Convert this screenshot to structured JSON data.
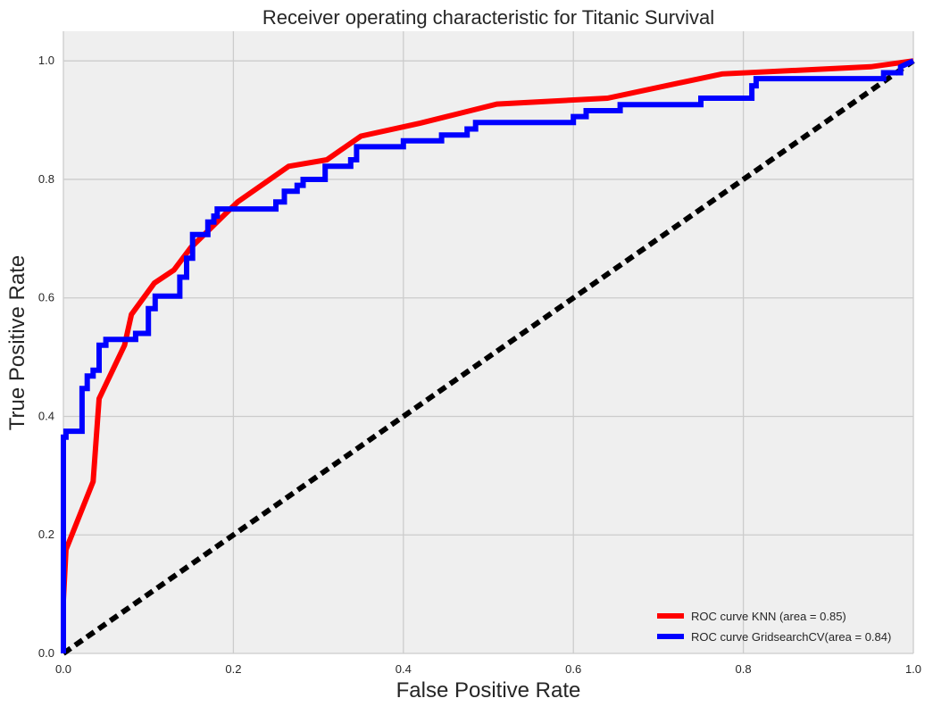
{
  "chart_data": {
    "type": "line",
    "title": "Receiver operating characteristic for Titanic Survival",
    "xlabel": "False Positive Rate",
    "ylabel": "True Positive Rate",
    "xlim": [
      0.0,
      1.0
    ],
    "ylim": [
      0.0,
      1.05
    ],
    "xticks": [
      0.0,
      0.2,
      0.4,
      0.6,
      0.8,
      1.0
    ],
    "xtick_labels": [
      "0.0",
      "0.2",
      "0.4",
      "0.6",
      "0.8",
      "1.0"
    ],
    "yticks": [
      0.0,
      0.2,
      0.4,
      0.6,
      0.8,
      1.0
    ],
    "ytick_labels": [
      "0.0",
      "0.2",
      "0.4",
      "0.6",
      "0.8",
      "1.0"
    ],
    "grid": true,
    "background_color": "#efefef",
    "grid_color": "#cccccc",
    "legend_position": "lower-right",
    "series": [
      {
        "name": "ROC curve KNN (area = 0.85)",
        "color": "#ff0000",
        "style": "solid",
        "x": [
          0.0,
          0.003,
          0.035,
          0.042,
          0.052,
          0.072,
          0.08,
          0.107,
          0.13,
          0.15,
          0.205,
          0.265,
          0.31,
          0.35,
          0.42,
          0.51,
          0.64,
          0.775,
          0.95,
          1.0
        ],
        "y": [
          0.09,
          0.175,
          0.29,
          0.43,
          0.46,
          0.52,
          0.572,
          0.625,
          0.647,
          0.685,
          0.762,
          0.822,
          0.833,
          0.873,
          0.895,
          0.927,
          0.937,
          0.978,
          0.99,
          1.0
        ]
      },
      {
        "name": "ROC curve GridsearchCV(area = 0.84)",
        "color": "#0000ff",
        "style": "solid",
        "x": [
          0.0,
          0.0,
          0.003,
          0.003,
          0.022,
          0.022,
          0.028,
          0.028,
          0.035,
          0.035,
          0.042,
          0.042,
          0.05,
          0.05,
          0.085,
          0.085,
          0.1,
          0.1,
          0.108,
          0.108,
          0.137,
          0.137,
          0.145,
          0.145,
          0.152,
          0.152,
          0.17,
          0.17,
          0.177,
          0.177,
          0.181,
          0.181,
          0.25,
          0.25,
          0.26,
          0.26,
          0.275,
          0.275,
          0.282,
          0.282,
          0.308,
          0.308,
          0.338,
          0.338,
          0.345,
          0.345,
          0.4,
          0.4,
          0.445,
          0.445,
          0.475,
          0.475,
          0.485,
          0.485,
          0.6,
          0.6,
          0.615,
          0.615,
          0.655,
          0.655,
          0.75,
          0.75,
          0.81,
          0.81,
          0.815,
          0.815,
          0.965,
          0.965,
          0.985,
          0.985,
          1.0
        ],
        "y": [
          0.0,
          0.365,
          0.365,
          0.375,
          0.375,
          0.447,
          0.447,
          0.468,
          0.468,
          0.478,
          0.478,
          0.52,
          0.52,
          0.53,
          0.53,
          0.54,
          0.54,
          0.582,
          0.582,
          0.603,
          0.603,
          0.635,
          0.635,
          0.667,
          0.667,
          0.707,
          0.707,
          0.728,
          0.728,
          0.738,
          0.738,
          0.75,
          0.75,
          0.762,
          0.762,
          0.78,
          0.78,
          0.79,
          0.79,
          0.8,
          0.8,
          0.822,
          0.822,
          0.833,
          0.833,
          0.855,
          0.855,
          0.865,
          0.865,
          0.875,
          0.875,
          0.885,
          0.885,
          0.896,
          0.896,
          0.906,
          0.906,
          0.916,
          0.916,
          0.926,
          0.926,
          0.937,
          0.937,
          0.958,
          0.958,
          0.97,
          0.97,
          0.98,
          0.98,
          0.99,
          1.0
        ]
      },
      {
        "color": "#000000",
        "style": "dashed",
        "in_legend": false,
        "x": [
          0.0,
          1.0
        ],
        "y": [
          0.0,
          1.0
        ]
      }
    ]
  }
}
